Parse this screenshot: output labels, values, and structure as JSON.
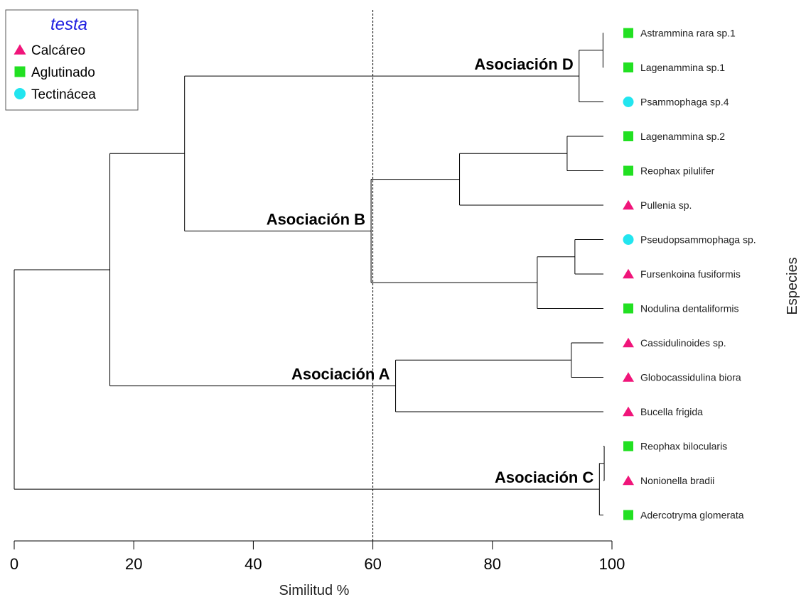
{
  "chart_data": {
    "type": "dendrogram",
    "xlabel": "Similitud %",
    "ylabel": "Especies",
    "xlim": [
      0,
      100
    ],
    "ticks": [
      0,
      20,
      40,
      60,
      80,
      100
    ],
    "cut_line": 60,
    "legend": {
      "title": "testa",
      "title_color": "#1f1fe0",
      "entries": [
        {
          "label": "Calcáreo",
          "shape": "triangle",
          "color": "#f0157a"
        },
        {
          "label": "Aglutinado",
          "shape": "square",
          "color": "#22e022"
        },
        {
          "label": "Tectinácea",
          "shape": "circle",
          "color": "#22e5ef"
        }
      ]
    },
    "leaves": [
      {
        "name": "Astrammina rara sp.1",
        "testa": "Aglutinado"
      },
      {
        "name": "Lagenammina sp.1",
        "testa": "Aglutinado"
      },
      {
        "name": "Psammophaga sp.4",
        "testa": "Tectinácea"
      },
      {
        "name": "Lagenammina sp.2",
        "testa": "Aglutinado"
      },
      {
        "name": "Reophax pilulifer",
        "testa": "Aglutinado"
      },
      {
        "name": "Pullenia sp.",
        "testa": "Calcáreo"
      },
      {
        "name": "Pseudopsammophaga sp.",
        "testa": "Tectinácea"
      },
      {
        "name": "Fursenkoina fusiformis",
        "testa": "Calcáreo"
      },
      {
        "name": "Nodulina dentaliformis",
        "testa": "Aglutinado"
      },
      {
        "name": "Cassidulinoides sp.",
        "testa": "Calcáreo"
      },
      {
        "name": "Globocassidulina biora",
        "testa": "Calcáreo"
      },
      {
        "name": "Bucella frigida",
        "testa": "Calcáreo"
      },
      {
        "name": "Reophax bilocularis",
        "testa": "Aglutinado"
      },
      {
        "name": "Nonionella bradii",
        "testa": "Calcáreo"
      },
      {
        "name": "Adercotryma glomerata",
        "testa": "Aglutinado"
      }
    ],
    "merges": [
      {
        "id": "m1",
        "children": [
          "Astrammina rara sp.1",
          "Lagenammina sp.1"
        ],
        "similarity": 98.5
      },
      {
        "id": "m2",
        "children": [
          "m1",
          "Psammophaga sp.4"
        ],
        "similarity": 94.5
      },
      {
        "id": "m3",
        "children": [
          "Lagenammina sp.2",
          "Reophax pilulifer"
        ],
        "similarity": 92.5
      },
      {
        "id": "m4",
        "children": [
          "m3",
          "Pullenia sp."
        ],
        "similarity": 74.5
      },
      {
        "id": "m5",
        "children": [
          "Pseudopsammophaga sp.",
          "Fursenkoina fusiformis"
        ],
        "similarity": 93.8
      },
      {
        "id": "m6",
        "children": [
          "m5",
          "Nodulina dentaliformis"
        ],
        "similarity": 87.5
      },
      {
        "id": "m7",
        "children": [
          "m4",
          "m6"
        ],
        "similarity": 59.7
      },
      {
        "id": "m8",
        "children": [
          "m2",
          "m7"
        ],
        "similarity": 28.5
      },
      {
        "id": "m9",
        "children": [
          "Cassidulinoides sp.",
          "Globocassidulina biora"
        ],
        "similarity": 93.2
      },
      {
        "id": "m10",
        "children": [
          "m9",
          "Bucella frigida"
        ],
        "similarity": 63.8
      },
      {
        "id": "m11",
        "children": [
          "m8",
          "m10"
        ],
        "similarity": 16
      },
      {
        "id": "m12",
        "children": [
          "Reophax bilocularis",
          "Nonionella bradii"
        ],
        "similarity": 98.7
      },
      {
        "id": "m13",
        "children": [
          "m12",
          "Adercotryma glomerata"
        ],
        "similarity": 97.9
      },
      {
        "id": "m14",
        "children": [
          "m11",
          "m13"
        ],
        "similarity": 0
      }
    ],
    "annotations": [
      {
        "text": "Asociación D",
        "node": "m2"
      },
      {
        "text": "Asociación B",
        "node": "m7"
      },
      {
        "text": "Asociación A",
        "node": "m10"
      },
      {
        "text": "Asociación C",
        "node": "m13"
      }
    ]
  }
}
